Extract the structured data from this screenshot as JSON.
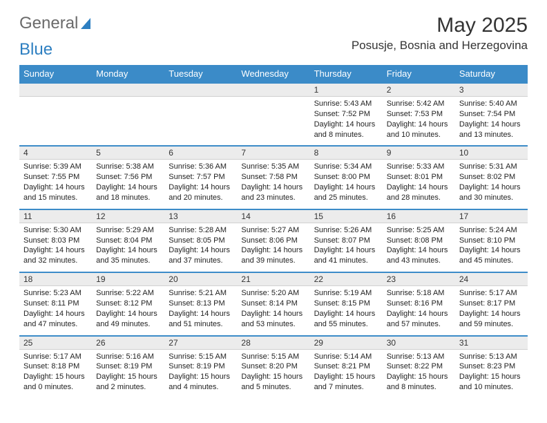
{
  "logo": {
    "word1": "General",
    "word2": "Blue"
  },
  "title": "May 2025",
  "location": "Posusje, Bosnia and Herzegovina",
  "dayHeaders": [
    "Sunday",
    "Monday",
    "Tuesday",
    "Wednesday",
    "Thursday",
    "Friday",
    "Saturday"
  ],
  "colors": {
    "header_bg": "#3b8bc8",
    "header_text": "#ffffff",
    "daynum_bg": "#ececec",
    "rule": "#3b8bc8",
    "text": "#222222",
    "logo_gray": "#6a6a6a",
    "logo_blue": "#2d7fc1"
  },
  "weeks": [
    [
      null,
      null,
      null,
      null,
      {
        "n": "1",
        "sr": "Sunrise: 5:43 AM",
        "ss": "Sunset: 7:52 PM",
        "dl": "Daylight: 14 hours and 8 minutes."
      },
      {
        "n": "2",
        "sr": "Sunrise: 5:42 AM",
        "ss": "Sunset: 7:53 PM",
        "dl": "Daylight: 14 hours and 10 minutes."
      },
      {
        "n": "3",
        "sr": "Sunrise: 5:40 AM",
        "ss": "Sunset: 7:54 PM",
        "dl": "Daylight: 14 hours and 13 minutes."
      }
    ],
    [
      {
        "n": "4",
        "sr": "Sunrise: 5:39 AM",
        "ss": "Sunset: 7:55 PM",
        "dl": "Daylight: 14 hours and 15 minutes."
      },
      {
        "n": "5",
        "sr": "Sunrise: 5:38 AM",
        "ss": "Sunset: 7:56 PM",
        "dl": "Daylight: 14 hours and 18 minutes."
      },
      {
        "n": "6",
        "sr": "Sunrise: 5:36 AM",
        "ss": "Sunset: 7:57 PM",
        "dl": "Daylight: 14 hours and 20 minutes."
      },
      {
        "n": "7",
        "sr": "Sunrise: 5:35 AM",
        "ss": "Sunset: 7:58 PM",
        "dl": "Daylight: 14 hours and 23 minutes."
      },
      {
        "n": "8",
        "sr": "Sunrise: 5:34 AM",
        "ss": "Sunset: 8:00 PM",
        "dl": "Daylight: 14 hours and 25 minutes."
      },
      {
        "n": "9",
        "sr": "Sunrise: 5:33 AM",
        "ss": "Sunset: 8:01 PM",
        "dl": "Daylight: 14 hours and 28 minutes."
      },
      {
        "n": "10",
        "sr": "Sunrise: 5:31 AM",
        "ss": "Sunset: 8:02 PM",
        "dl": "Daylight: 14 hours and 30 minutes."
      }
    ],
    [
      {
        "n": "11",
        "sr": "Sunrise: 5:30 AM",
        "ss": "Sunset: 8:03 PM",
        "dl": "Daylight: 14 hours and 32 minutes."
      },
      {
        "n": "12",
        "sr": "Sunrise: 5:29 AM",
        "ss": "Sunset: 8:04 PM",
        "dl": "Daylight: 14 hours and 35 minutes."
      },
      {
        "n": "13",
        "sr": "Sunrise: 5:28 AM",
        "ss": "Sunset: 8:05 PM",
        "dl": "Daylight: 14 hours and 37 minutes."
      },
      {
        "n": "14",
        "sr": "Sunrise: 5:27 AM",
        "ss": "Sunset: 8:06 PM",
        "dl": "Daylight: 14 hours and 39 minutes."
      },
      {
        "n": "15",
        "sr": "Sunrise: 5:26 AM",
        "ss": "Sunset: 8:07 PM",
        "dl": "Daylight: 14 hours and 41 minutes."
      },
      {
        "n": "16",
        "sr": "Sunrise: 5:25 AM",
        "ss": "Sunset: 8:08 PM",
        "dl": "Daylight: 14 hours and 43 minutes."
      },
      {
        "n": "17",
        "sr": "Sunrise: 5:24 AM",
        "ss": "Sunset: 8:10 PM",
        "dl": "Daylight: 14 hours and 45 minutes."
      }
    ],
    [
      {
        "n": "18",
        "sr": "Sunrise: 5:23 AM",
        "ss": "Sunset: 8:11 PM",
        "dl": "Daylight: 14 hours and 47 minutes."
      },
      {
        "n": "19",
        "sr": "Sunrise: 5:22 AM",
        "ss": "Sunset: 8:12 PM",
        "dl": "Daylight: 14 hours and 49 minutes."
      },
      {
        "n": "20",
        "sr": "Sunrise: 5:21 AM",
        "ss": "Sunset: 8:13 PM",
        "dl": "Daylight: 14 hours and 51 minutes."
      },
      {
        "n": "21",
        "sr": "Sunrise: 5:20 AM",
        "ss": "Sunset: 8:14 PM",
        "dl": "Daylight: 14 hours and 53 minutes."
      },
      {
        "n": "22",
        "sr": "Sunrise: 5:19 AM",
        "ss": "Sunset: 8:15 PM",
        "dl": "Daylight: 14 hours and 55 minutes."
      },
      {
        "n": "23",
        "sr": "Sunrise: 5:18 AM",
        "ss": "Sunset: 8:16 PM",
        "dl": "Daylight: 14 hours and 57 minutes."
      },
      {
        "n": "24",
        "sr": "Sunrise: 5:17 AM",
        "ss": "Sunset: 8:17 PM",
        "dl": "Daylight: 14 hours and 59 minutes."
      }
    ],
    [
      {
        "n": "25",
        "sr": "Sunrise: 5:17 AM",
        "ss": "Sunset: 8:18 PM",
        "dl": "Daylight: 15 hours and 0 minutes."
      },
      {
        "n": "26",
        "sr": "Sunrise: 5:16 AM",
        "ss": "Sunset: 8:19 PM",
        "dl": "Daylight: 15 hours and 2 minutes."
      },
      {
        "n": "27",
        "sr": "Sunrise: 5:15 AM",
        "ss": "Sunset: 8:19 PM",
        "dl": "Daylight: 15 hours and 4 minutes."
      },
      {
        "n": "28",
        "sr": "Sunrise: 5:15 AM",
        "ss": "Sunset: 8:20 PM",
        "dl": "Daylight: 15 hours and 5 minutes."
      },
      {
        "n": "29",
        "sr": "Sunrise: 5:14 AM",
        "ss": "Sunset: 8:21 PM",
        "dl": "Daylight: 15 hours and 7 minutes."
      },
      {
        "n": "30",
        "sr": "Sunrise: 5:13 AM",
        "ss": "Sunset: 8:22 PM",
        "dl": "Daylight: 15 hours and 8 minutes."
      },
      {
        "n": "31",
        "sr": "Sunrise: 5:13 AM",
        "ss": "Sunset: 8:23 PM",
        "dl": "Daylight: 15 hours and 10 minutes."
      }
    ]
  ]
}
